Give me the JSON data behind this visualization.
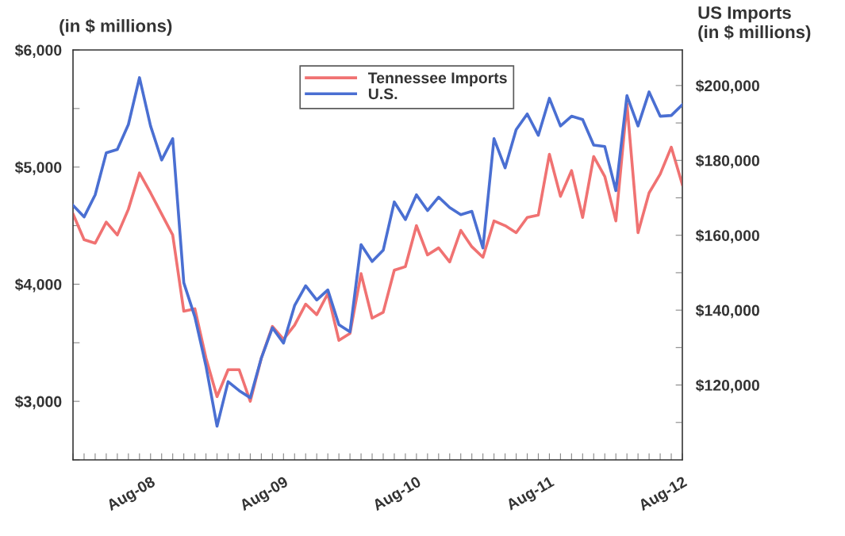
{
  "chart_data": {
    "type": "line",
    "ylabel": "(in $ millions)",
    "y2label": "US Imports\n(in $ millions)",
    "x": [
      "2008-01",
      "2008-02",
      "2008-03",
      "2008-04",
      "2008-05",
      "2008-06",
      "2008-07",
      "2008-08",
      "2008-09",
      "2008-10",
      "2008-11",
      "2008-12",
      "2009-01",
      "2009-02",
      "2009-03",
      "2009-04",
      "2009-05",
      "2009-06",
      "2009-07",
      "2009-08",
      "2009-09",
      "2009-10",
      "2009-11",
      "2009-12",
      "2010-01",
      "2010-02",
      "2010-03",
      "2010-04",
      "2010-05",
      "2010-06",
      "2010-07",
      "2010-08",
      "2010-09",
      "2010-10",
      "2010-11",
      "2010-12",
      "2011-01",
      "2011-02",
      "2011-03",
      "2011-04",
      "2011-05",
      "2011-06",
      "2011-07",
      "2011-08",
      "2011-09",
      "2011-10",
      "2011-11",
      "2011-12",
      "2012-01",
      "2012-02",
      "2012-03",
      "2012-04",
      "2012-05",
      "2012-06",
      "2012-07",
      "2012-08"
    ],
    "series": [
      {
        "name": "Tennessee Imports",
        "color": "#f07272",
        "values": [
          4600,
          4380,
          4350,
          4530,
          4420,
          4640,
          4950,
          4780,
          4600,
          4420,
          3770,
          3790,
          3370,
          3040,
          3270,
          3270,
          3000,
          3370,
          3640,
          3530,
          3650,
          3830,
          3740,
          3920,
          3520,
          3580,
          4090,
          3710,
          3760,
          4120,
          4150,
          4500,
          4250,
          4310,
          4190,
          4460,
          4320,
          4230,
          4540,
          4500,
          4440,
          4570,
          4590,
          5110,
          4750,
          4970,
          4570,
          5090,
          4920,
          4540,
          5540,
          4440,
          4780,
          4940,
          5170,
          4850
        ]
      },
      {
        "name": "U.S.",
        "color": "#4a6fd2",
        "axis": "y2",
        "values": [
          168000,
          164900,
          170800,
          182000,
          182900,
          189600,
          202100,
          189200,
          180100,
          185800,
          147300,
          138200,
          125100,
          109000,
          120900,
          118500,
          116600,
          127200,
          135300,
          131200,
          141200,
          146500,
          142700,
          145400,
          136100,
          134200,
          157500,
          153000,
          156000,
          168900,
          164200,
          170800,
          166600,
          170200,
          167400,
          165500,
          166400,
          156600,
          185800,
          178000,
          188200,
          192400,
          186700,
          196600,
          189200,
          191800,
          190900,
          184100,
          183700,
          171900,
          197300,
          189200,
          198300,
          191800,
          192000,
          194900
        ]
      }
    ],
    "xlim": [
      "2008-01",
      "2012-08"
    ],
    "xticks": [
      {
        "value": "2008-01",
        "label": null
      },
      {
        "value": "2008-02",
        "label": null
      },
      {
        "value": "2008-03",
        "label": null
      },
      {
        "value": "2008-04",
        "label": null
      },
      {
        "value": "2008-05",
        "label": null
      },
      {
        "value": "2008-06",
        "label": null
      },
      {
        "value": "2008-07",
        "label": null
      },
      {
        "value": "2008-08",
        "label": "Aug-08"
      },
      {
        "value": "2008-09",
        "label": null
      },
      {
        "value": "2008-10",
        "label": null
      },
      {
        "value": "2008-11",
        "label": null
      },
      {
        "value": "2008-12",
        "label": null
      },
      {
        "value": "2009-01",
        "label": null
      },
      {
        "value": "2009-02",
        "label": null
      },
      {
        "value": "2009-03",
        "label": null
      },
      {
        "value": "2009-04",
        "label": null
      },
      {
        "value": "2009-05",
        "label": null
      },
      {
        "value": "2009-06",
        "label": null
      },
      {
        "value": "2009-07",
        "label": null
      },
      {
        "value": "2009-08",
        "label": "Aug-09"
      },
      {
        "value": "2009-09",
        "label": null
      },
      {
        "value": "2009-10",
        "label": null
      },
      {
        "value": "2009-11",
        "label": null
      },
      {
        "value": "2009-12",
        "label": null
      },
      {
        "value": "2010-01",
        "label": null
      },
      {
        "value": "2010-02",
        "label": null
      },
      {
        "value": "2010-03",
        "label": null
      },
      {
        "value": "2010-04",
        "label": null
      },
      {
        "value": "2010-05",
        "label": null
      },
      {
        "value": "2010-06",
        "label": null
      },
      {
        "value": "2010-07",
        "label": null
      },
      {
        "value": "2010-08",
        "label": "Aug-10"
      },
      {
        "value": "2010-09",
        "label": null
      },
      {
        "value": "2010-10",
        "label": null
      },
      {
        "value": "2010-11",
        "label": null
      },
      {
        "value": "2010-12",
        "label": null
      },
      {
        "value": "2011-01",
        "label": null
      },
      {
        "value": "2011-02",
        "label": null
      },
      {
        "value": "2011-03",
        "label": null
      },
      {
        "value": "2011-04",
        "label": null
      },
      {
        "value": "2011-05",
        "label": null
      },
      {
        "value": "2011-06",
        "label": null
      },
      {
        "value": "2011-07",
        "label": null
      },
      {
        "value": "2011-08",
        "label": "Aug-11"
      },
      {
        "value": "2011-09",
        "label": null
      },
      {
        "value": "2011-10",
        "label": null
      },
      {
        "value": "2011-11",
        "label": null
      },
      {
        "value": "2011-12",
        "label": null
      },
      {
        "value": "2012-01",
        "label": null
      },
      {
        "value": "2012-02",
        "label": null
      },
      {
        "value": "2012-03",
        "label": null
      },
      {
        "value": "2012-04",
        "label": null
      },
      {
        "value": "2012-05",
        "label": null
      },
      {
        "value": "2012-06",
        "label": null
      },
      {
        "value": "2012-07",
        "label": null
      },
      {
        "value": "2012-08",
        "label": "Aug-12"
      }
    ],
    "ylim": [
      2500,
      6000
    ],
    "yticks": [
      {
        "value": 2500,
        "label": null
      },
      {
        "value": 3000,
        "label": "$3,000"
      },
      {
        "value": 3500,
        "label": null
      },
      {
        "value": 4000,
        "label": "$4,000"
      },
      {
        "value": 4500,
        "label": null
      },
      {
        "value": 5000,
        "label": "$5,000"
      },
      {
        "value": 5500,
        "label": null
      },
      {
        "value": 6000,
        "label": "$6,000"
      }
    ],
    "y2lim": [
      100000,
      209500
    ],
    "y2ticks": [
      {
        "value": 110000,
        "label": null
      },
      {
        "value": 120000,
        "label": "$120,000"
      },
      {
        "value": 130000,
        "label": null
      },
      {
        "value": 140000,
        "label": "$140,000"
      },
      {
        "value": 150000,
        "label": null
      },
      {
        "value": 160000,
        "label": "$160,000"
      },
      {
        "value": 170000,
        "label": null
      },
      {
        "value": 180000,
        "label": "$180,000"
      },
      {
        "value": 190000,
        "label": null
      },
      {
        "value": 200000,
        "label": "$200,000"
      }
    ],
    "grid": false,
    "legend": "top",
    "marker": "none",
    "line_style": "solid"
  }
}
